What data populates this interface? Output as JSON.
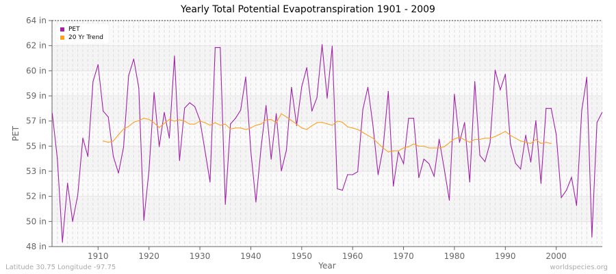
{
  "chart_data": {
    "type": "line",
    "title": "Yearly Total Potential Evapotranspiration 1901 - 2009",
    "xlabel": "Year",
    "ylabel": "PET",
    "xlim": [
      1901,
      2009
    ],
    "ylim": [
      48,
      64
    ],
    "x_ticks": [
      1910,
      1920,
      1930,
      1940,
      1950,
      1960,
      1970,
      1980,
      1990,
      2000
    ],
    "y_tick_labels": [
      "48 in",
      "50 in",
      "52 in",
      "53 in",
      "55 in",
      "57 in",
      "59 in",
      "60 in",
      "62 in",
      "64 in"
    ],
    "grid": true,
    "legend_position": "top-left",
    "series": [
      {
        "name": "PET",
        "color": "#a020a8",
        "x_start": 1901,
        "values": [
          57.42,
          54.22,
          48.32,
          52.49,
          49.78,
          51.64,
          55.68,
          54.38,
          59.68,
          60.88,
          57.59,
          57.18,
          54.38,
          53.2,
          55.03,
          60.09,
          61.28,
          59.23,
          49.86,
          53.41,
          58.91,
          55.08,
          57.5,
          55.68,
          61.49,
          54.09,
          57.81,
          58.18,
          57.91,
          56.94,
          54.79,
          52.57,
          62.09,
          62.09,
          50.99,
          56.68,
          57.08,
          57.66,
          60.01,
          54.79,
          51.15,
          54.95,
          57.99,
          54.19,
          57.41,
          53.36,
          54.84,
          59.28,
          56.57,
          59.31,
          60.67,
          57.59,
          58.55,
          62.3,
          58.51,
          62.19,
          52.09,
          51.99,
          53.09,
          53.09,
          53.3,
          57.7,
          59.28,
          56.57,
          53.09,
          55.03,
          58.99,
          52.28,
          54.71,
          53.87,
          57.08,
          57.08,
          52.88,
          54.19,
          53.87,
          52.98,
          55.6,
          53.49,
          51.28,
          58.79,
          55.38,
          56.78,
          52.57,
          59.68,
          54.46,
          54.01,
          55.35,
          60.49,
          59.1,
          60.2,
          55.27,
          53.9,
          53.49,
          55.89,
          53.98,
          56.92,
          52.47,
          57.78,
          57.78,
          55.92,
          51.47,
          51.99,
          52.9,
          50.91,
          57.61,
          59.99,
          48.68,
          56.78,
          57.49
        ]
      },
      {
        "name": "20 Yr Trend",
        "color": "#ffa020",
        "x_start": 1911,
        "values": [
          55.48,
          55.38,
          55.48,
          55.92,
          56.32,
          56.51,
          56.8,
          56.92,
          57.08,
          57.0,
          56.76,
          56.43,
          56.72,
          57.0,
          56.88,
          56.97,
          56.88,
          56.67,
          56.67,
          56.88,
          56.77,
          56.59,
          56.77,
          56.59,
          56.67,
          56.32,
          56.4,
          56.4,
          56.29,
          56.4,
          56.59,
          56.67,
          56.97,
          57.0,
          56.77,
          57.4,
          57.18,
          56.92,
          56.67,
          56.4,
          56.29,
          56.56,
          56.77,
          56.8,
          56.69,
          56.59,
          56.88,
          56.8,
          56.48,
          56.4,
          56.29,
          56.08,
          55.87,
          55.67,
          55.3,
          54.98,
          54.7,
          54.78,
          54.78,
          54.98,
          55.07,
          55.27,
          55.11,
          55.11,
          54.98,
          54.98,
          54.98,
          55.07,
          55.35,
          55.62,
          55.75,
          55.56,
          55.38,
          55.59,
          55.59,
          55.67,
          55.67,
          55.79,
          55.96,
          56.16,
          55.87,
          55.67,
          55.48,
          55.38,
          55.3,
          55.59,
          55.3,
          55.38,
          55.3
        ]
      }
    ]
  },
  "footer": {
    "location": "Latitude 30.75 Longitude -97.75",
    "source": "worldspecies.org"
  }
}
